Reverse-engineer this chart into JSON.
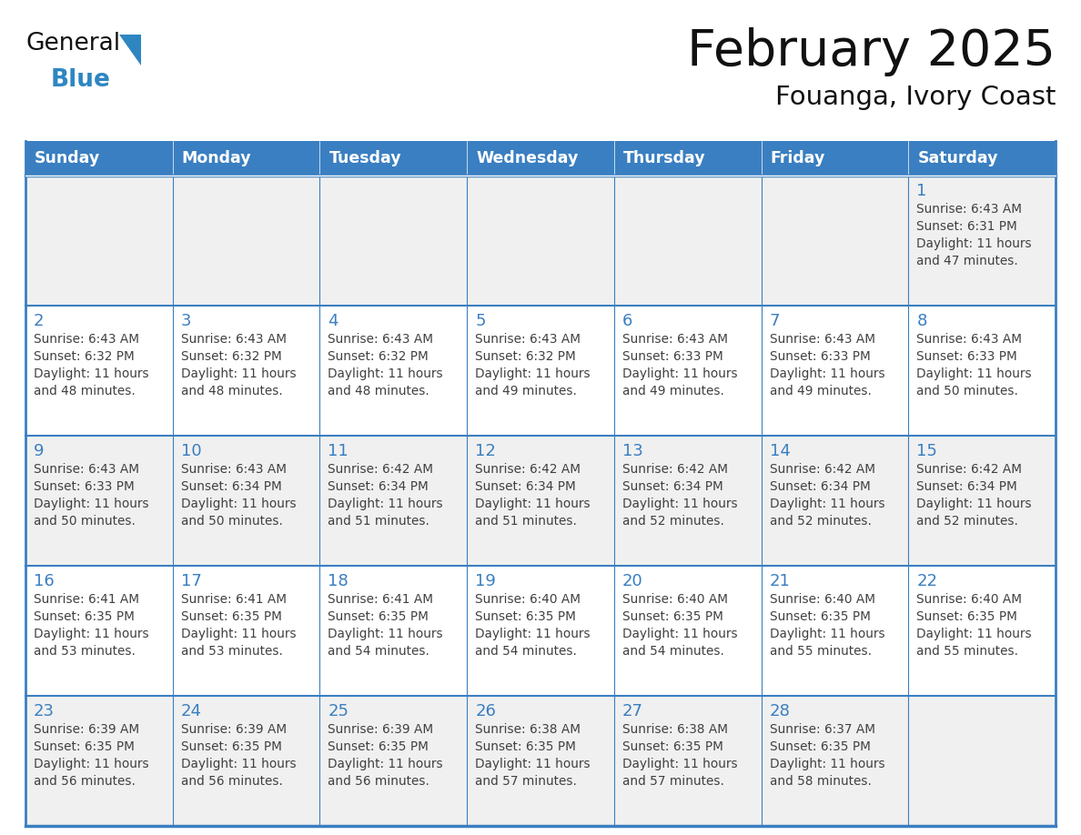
{
  "title": "February 2025",
  "subtitle": "Fouanga, Ivory Coast",
  "header_bg_color": "#3a7fc1",
  "header_text_color": "#ffffff",
  "cell_bg_white": "#ffffff",
  "cell_bg_gray": "#f0f0f0",
  "border_color": "#3a7fc1",
  "text_color": "#404040",
  "day_number_color": "#3a7fc1",
  "days_of_week": [
    "Sunday",
    "Monday",
    "Tuesday",
    "Wednesday",
    "Thursday",
    "Friday",
    "Saturday"
  ],
  "calendar_data": [
    [
      null,
      null,
      null,
      null,
      null,
      null,
      1
    ],
    [
      2,
      3,
      4,
      5,
      6,
      7,
      8
    ],
    [
      9,
      10,
      11,
      12,
      13,
      14,
      15
    ],
    [
      16,
      17,
      18,
      19,
      20,
      21,
      22
    ],
    [
      23,
      24,
      25,
      26,
      27,
      28,
      null
    ]
  ],
  "cell_info": {
    "1": {
      "sunrise": "6:43 AM",
      "sunset": "6:31 PM",
      "daylight_hours": 11,
      "daylight_minutes": 47
    },
    "2": {
      "sunrise": "6:43 AM",
      "sunset": "6:32 PM",
      "daylight_hours": 11,
      "daylight_minutes": 48
    },
    "3": {
      "sunrise": "6:43 AM",
      "sunset": "6:32 PM",
      "daylight_hours": 11,
      "daylight_minutes": 48
    },
    "4": {
      "sunrise": "6:43 AM",
      "sunset": "6:32 PM",
      "daylight_hours": 11,
      "daylight_minutes": 48
    },
    "5": {
      "sunrise": "6:43 AM",
      "sunset": "6:32 PM",
      "daylight_hours": 11,
      "daylight_minutes": 49
    },
    "6": {
      "sunrise": "6:43 AM",
      "sunset": "6:33 PM",
      "daylight_hours": 11,
      "daylight_minutes": 49
    },
    "7": {
      "sunrise": "6:43 AM",
      "sunset": "6:33 PM",
      "daylight_hours": 11,
      "daylight_minutes": 49
    },
    "8": {
      "sunrise": "6:43 AM",
      "sunset": "6:33 PM",
      "daylight_hours": 11,
      "daylight_minutes": 50
    },
    "9": {
      "sunrise": "6:43 AM",
      "sunset": "6:33 PM",
      "daylight_hours": 11,
      "daylight_minutes": 50
    },
    "10": {
      "sunrise": "6:43 AM",
      "sunset": "6:34 PM",
      "daylight_hours": 11,
      "daylight_minutes": 50
    },
    "11": {
      "sunrise": "6:42 AM",
      "sunset": "6:34 PM",
      "daylight_hours": 11,
      "daylight_minutes": 51
    },
    "12": {
      "sunrise": "6:42 AM",
      "sunset": "6:34 PM",
      "daylight_hours": 11,
      "daylight_minutes": 51
    },
    "13": {
      "sunrise": "6:42 AM",
      "sunset": "6:34 PM",
      "daylight_hours": 11,
      "daylight_minutes": 52
    },
    "14": {
      "sunrise": "6:42 AM",
      "sunset": "6:34 PM",
      "daylight_hours": 11,
      "daylight_minutes": 52
    },
    "15": {
      "sunrise": "6:42 AM",
      "sunset": "6:34 PM",
      "daylight_hours": 11,
      "daylight_minutes": 52
    },
    "16": {
      "sunrise": "6:41 AM",
      "sunset": "6:35 PM",
      "daylight_hours": 11,
      "daylight_minutes": 53
    },
    "17": {
      "sunrise": "6:41 AM",
      "sunset": "6:35 PM",
      "daylight_hours": 11,
      "daylight_minutes": 53
    },
    "18": {
      "sunrise": "6:41 AM",
      "sunset": "6:35 PM",
      "daylight_hours": 11,
      "daylight_minutes": 54
    },
    "19": {
      "sunrise": "6:40 AM",
      "sunset": "6:35 PM",
      "daylight_hours": 11,
      "daylight_minutes": 54
    },
    "20": {
      "sunrise": "6:40 AM",
      "sunset": "6:35 PM",
      "daylight_hours": 11,
      "daylight_minutes": 54
    },
    "21": {
      "sunrise": "6:40 AM",
      "sunset": "6:35 PM",
      "daylight_hours": 11,
      "daylight_minutes": 55
    },
    "22": {
      "sunrise": "6:40 AM",
      "sunset": "6:35 PM",
      "daylight_hours": 11,
      "daylight_minutes": 55
    },
    "23": {
      "sunrise": "6:39 AM",
      "sunset": "6:35 PM",
      "daylight_hours": 11,
      "daylight_minutes": 56
    },
    "24": {
      "sunrise": "6:39 AM",
      "sunset": "6:35 PM",
      "daylight_hours": 11,
      "daylight_minutes": 56
    },
    "25": {
      "sunrise": "6:39 AM",
      "sunset": "6:35 PM",
      "daylight_hours": 11,
      "daylight_minutes": 56
    },
    "26": {
      "sunrise": "6:38 AM",
      "sunset": "6:35 PM",
      "daylight_hours": 11,
      "daylight_minutes": 57
    },
    "27": {
      "sunrise": "6:38 AM",
      "sunset": "6:35 PM",
      "daylight_hours": 11,
      "daylight_minutes": 57
    },
    "28": {
      "sunrise": "6:37 AM",
      "sunset": "6:35 PM",
      "daylight_hours": 11,
      "daylight_minutes": 58
    }
  }
}
